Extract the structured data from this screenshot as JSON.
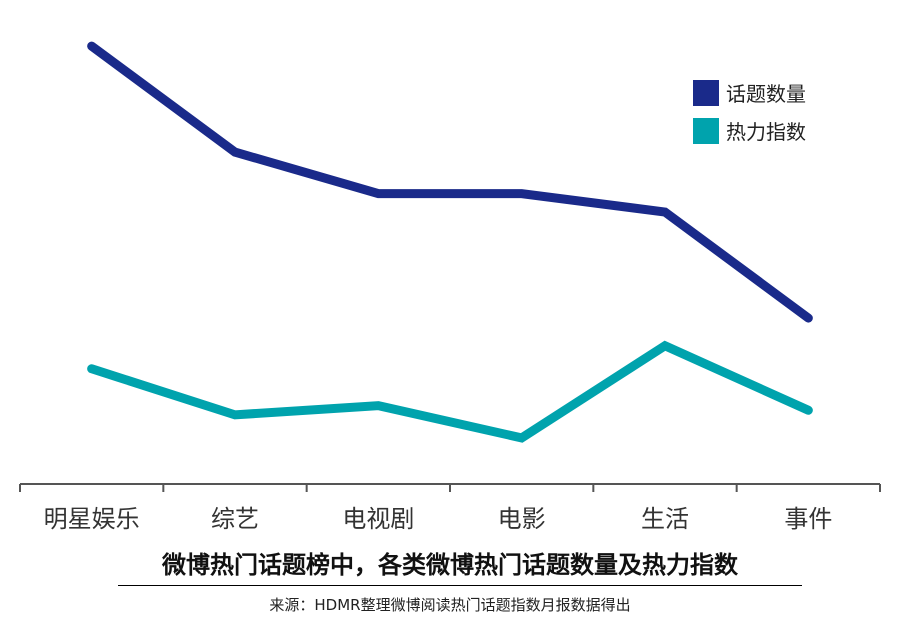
{
  "title": "微博热门话题榜中，各类微博热门话题数量及热力指数",
  "source": "来源：HDMR整理微博阅读热门话题指数月报数据得出",
  "colors": {
    "series1": "#1a2a8a",
    "series2": "#00a3ad",
    "axis": "#555555"
  },
  "chart_data": {
    "type": "line",
    "categories": [
      "明星娱乐",
      "综艺",
      "电视剧",
      "电影",
      "生活",
      "事件"
    ],
    "series": [
      {
        "name": "话题数量",
        "values": [
          95,
          72,
          63,
          63,
          59,
          36
        ]
      },
      {
        "name": "热力指数",
        "values": [
          25,
          15,
          17,
          10,
          30,
          16
        ]
      }
    ],
    "ylim": [
      0,
      105
    ],
    "grid": false,
    "legend": "top-right",
    "title": "",
    "xlabel": "",
    "ylabel": ""
  }
}
